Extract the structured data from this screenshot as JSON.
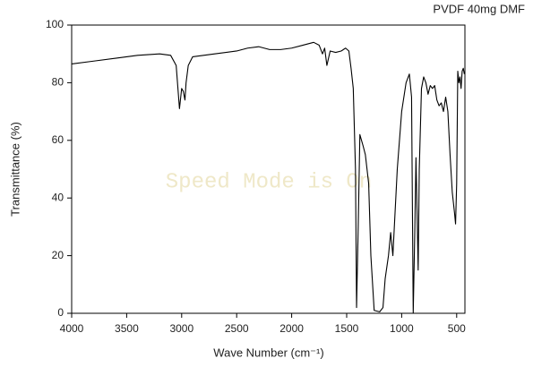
{
  "chart_data": {
    "type": "line",
    "title": "PVDF 40mg DMF",
    "x_label": "Wave Number (cm⁻¹)",
    "y_label": "Transmittance (%)",
    "annotation": "Speed Mode is On",
    "color": "#000000",
    "x": [
      4000,
      3800,
      3600,
      3400,
      3200,
      3100,
      3050,
      3020,
      3000,
      2985,
      2970,
      2960,
      2940,
      2900,
      2700,
      2500,
      2400,
      2300,
      2200,
      2100,
      2000,
      1900,
      1800,
      1750,
      1720,
      1700,
      1680,
      1650,
      1600,
      1550,
      1510,
      1480,
      1460,
      1440,
      1420,
      1410,
      1395,
      1380,
      1350,
      1330,
      1300,
      1280,
      1250,
      1200,
      1170,
      1150,
      1120,
      1100,
      1080,
      1060,
      1040,
      1000,
      960,
      930,
      910,
      895,
      880,
      870,
      860,
      850,
      840,
      820,
      800,
      780,
      760,
      740,
      720,
      700,
      680,
      660,
      640,
      620,
      600,
      580,
      560,
      540,
      520,
      510,
      500,
      490,
      480,
      470,
      460,
      450,
      440,
      430
    ],
    "values": [
      86.5,
      87.5,
      88.5,
      89.5,
      90,
      89.5,
      86,
      71,
      78,
      77,
      74,
      80,
      86,
      89,
      90,
      91,
      92,
      92.5,
      91.5,
      91.5,
      92,
      93,
      94,
      93,
      90,
      92,
      86,
      91,
      90.5,
      91,
      92,
      91,
      85,
      78,
      50,
      2,
      30,
      62,
      58,
      55,
      45,
      20,
      1,
      0.5,
      2,
      12,
      20,
      28,
      20,
      35,
      50,
      70,
      80,
      83,
      75,
      0,
      30,
      54,
      35,
      15,
      50,
      78,
      82,
      80,
      76,
      79,
      78,
      79,
      74,
      72,
      73,
      70,
      75,
      70,
      55,
      42,
      35,
      31,
      45,
      84,
      80,
      82,
      78,
      84,
      85,
      83
    ],
    "xlim": [
      4000,
      425
    ],
    "ylim": [
      0,
      100
    ],
    "xticks": [
      4000,
      3500,
      3000,
      2500,
      2000,
      1500,
      1000,
      500
    ],
    "yticks": [
      0,
      20,
      40,
      60,
      80,
      100
    ]
  }
}
